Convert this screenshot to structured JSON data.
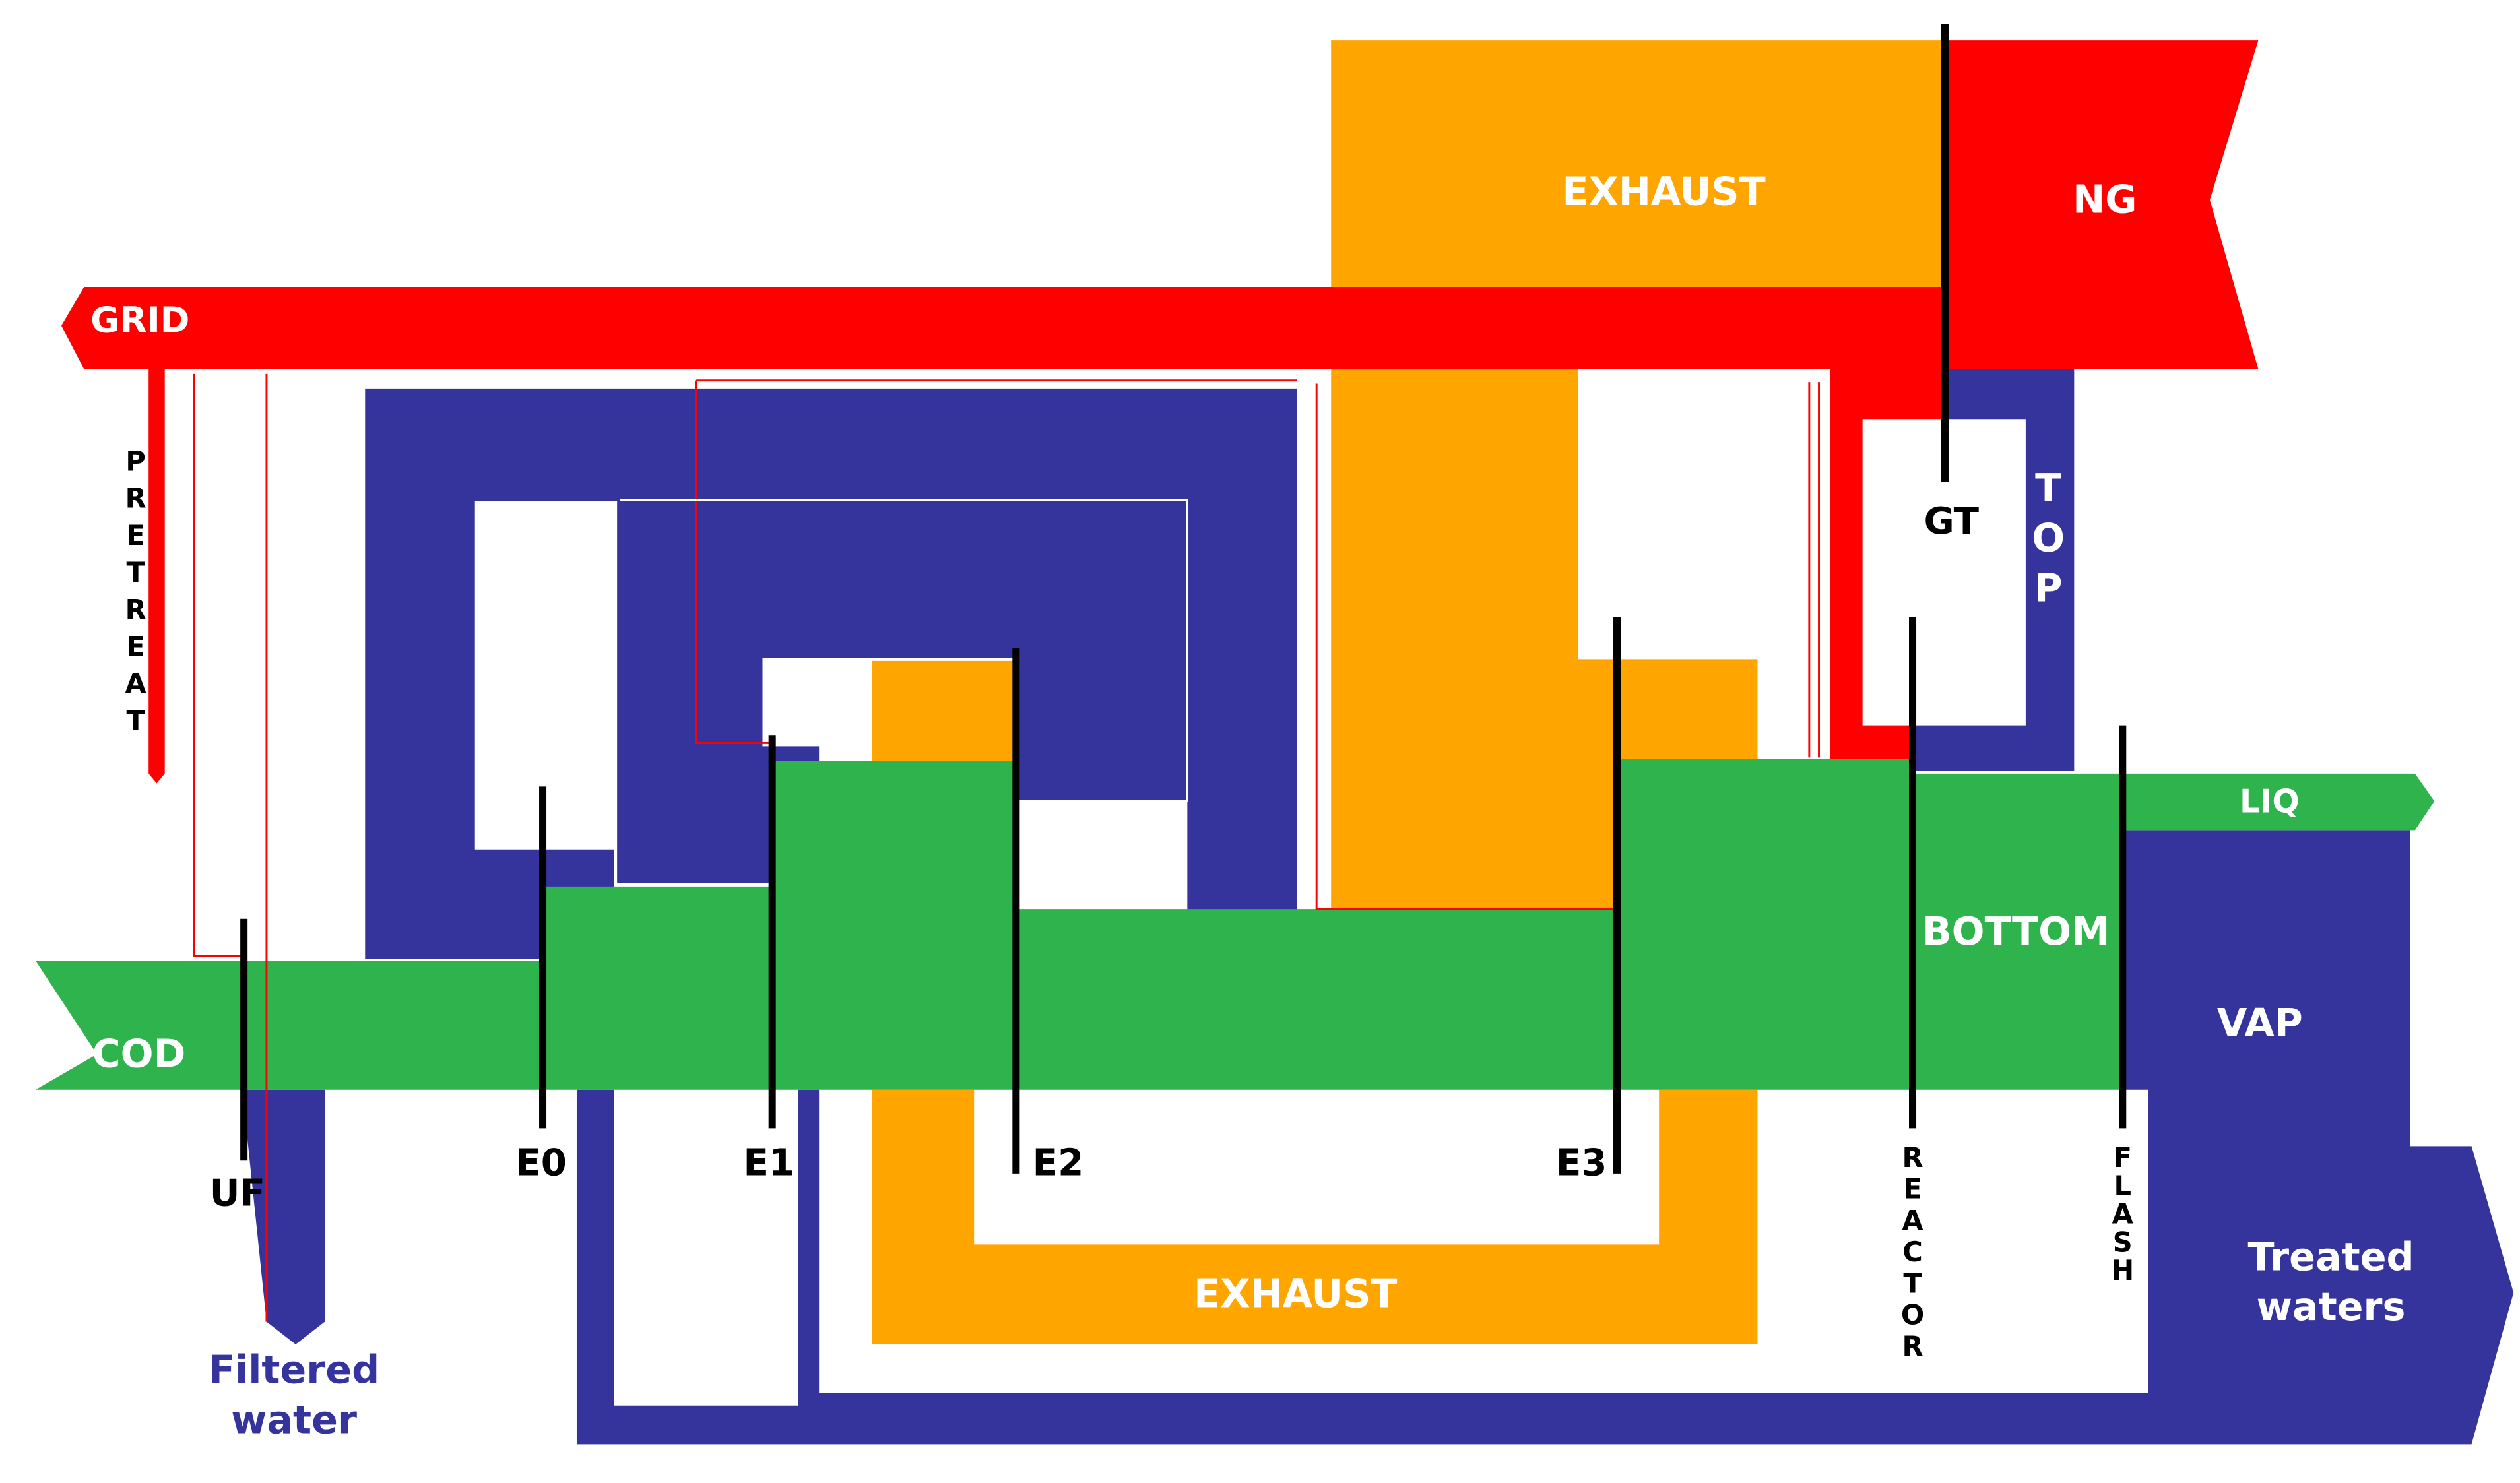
{
  "colors": {
    "electricity": "#ff0000",
    "heat": "#ffa500",
    "water": "#34349c",
    "wastewater": "#2fb34c",
    "equipment_line": "#000000",
    "background": "#ffffff"
  },
  "flows": {
    "ng": "NG",
    "grid": "GRID",
    "exhaust_top": "EXHAUST",
    "exhaust_bottom": "EXHAUST",
    "pretreat": "PRETREAT",
    "top": "TOP",
    "cod": "COD",
    "liq": "LIQ",
    "bottom": "BOTTOM",
    "vap": "VAP",
    "treated_waters": [
      "Treated",
      "waters"
    ],
    "filtered_water": [
      "Filtered",
      "water"
    ]
  },
  "units": {
    "gt": "GT",
    "uf": "UF",
    "e0": "E0",
    "e1": "E1",
    "e2": "E2",
    "e3": "E3",
    "reactor": "REACTOR",
    "flash": "FLASH"
  }
}
